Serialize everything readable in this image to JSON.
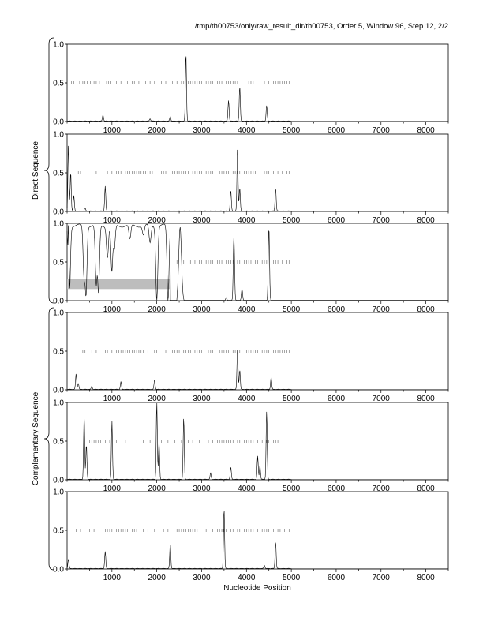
{
  "header": "/tmp/th00753/only/raw_result_dir/th00753, Order 5, Window 96, Step 12, 2/2",
  "group_labels": {
    "direct": "Direct Sequence",
    "complementary": "Complementary Sequence"
  },
  "colors": {
    "trace": "#000000",
    "highlight": "#bdbdbd",
    "axis": "#000000"
  },
  "chart_data": {
    "type": "line",
    "xlabel": "Nucleotide Position",
    "xlim": [
      0,
      8500
    ],
    "ylim": [
      0,
      1
    ],
    "x_ticks": [
      "1000",
      "2000",
      "3000",
      "4000",
      "5000",
      "6000",
      "7000",
      "8000"
    ],
    "y_ticks": [
      "0.0",
      "0.5",
      "1.0"
    ],
    "panels": [
      {
        "group": "direct",
        "peaks": [
          [
            800,
            0.08
          ],
          [
            1850,
            0.03
          ],
          [
            2300,
            0.06
          ],
          [
            2650,
            0.88
          ],
          [
            3600,
            0.27
          ],
          [
            3850,
            0.45
          ],
          [
            4450,
            0.2
          ]
        ],
        "dashes": [
          100,
          150,
          280,
          350,
          400,
          450,
          520,
          600,
          650,
          720,
          800,
          880,
          920,
          980,
          1050,
          1100,
          1200,
          1350,
          1450,
          1500,
          1600,
          1750,
          1850,
          1950,
          2100,
          2200,
          2350,
          2450,
          2550,
          2600,
          2700,
          2750,
          2800,
          2850,
          2900,
          2950,
          3000,
          3050,
          3100,
          3150,
          3200,
          3250,
          3300,
          3350,
          3400,
          3450,
          3550,
          3600,
          3650,
          3700,
          3750,
          3800,
          4050,
          4100,
          4150,
          4300,
          4400,
          4500,
          4550,
          4600,
          4650,
          4700,
          4750,
          4800,
          4850,
          4900,
          4950
        ],
        "dash_y": 0.5
      },
      {
        "group": "direct",
        "peaks": [
          [
            30,
            0.85
          ],
          [
            80,
            0.5
          ],
          [
            150,
            0.2
          ],
          [
            400,
            0.04
          ],
          [
            850,
            0.32
          ],
          [
            3650,
            0.27
          ],
          [
            3800,
            0.82
          ],
          [
            3850,
            0.3
          ],
          [
            4650,
            0.3
          ]
        ],
        "dashes": [
          250,
          300,
          650,
          900,
          1000,
          1050,
          1100,
          1150,
          1200,
          1300,
          1350,
          1400,
          1450,
          1500,
          1550,
          1600,
          1650,
          1700,
          1750,
          1800,
          1850,
          1900,
          2100,
          2150,
          2200,
          2300,
          2350,
          2400,
          2450,
          2500,
          2550,
          2600,
          2650,
          2700,
          2800,
          2850,
          2900,
          2950,
          3000,
          3050,
          3100,
          3150,
          3200,
          3250,
          3300,
          3400,
          3450,
          3500,
          3550,
          3600,
          3700,
          3750,
          3800,
          3850,
          3900,
          3950,
          4000,
          4050,
          4100,
          4150,
          4200,
          4300,
          4400,
          4450,
          4500,
          4550,
          4600,
          4700,
          4800,
          4900,
          4950
        ],
        "dash_y": 0.5
      },
      {
        "group": "direct",
        "highlight": [
          0,
          2300,
          0.15,
          0.28
        ],
        "peaks": [
          [
            30,
            0.98
          ],
          [
            3550,
            0.04
          ],
          [
            3720,
            0.86
          ],
          [
            3900,
            0.15
          ],
          [
            4500,
            0.95
          ]
        ],
        "valleys": [
          [
            50,
            0.0
          ],
          [
            380,
            0.3
          ],
          [
            420,
            0.05
          ],
          [
            650,
            0.2
          ],
          [
            700,
            0.1
          ],
          [
            900,
            0.55
          ],
          [
            1000,
            0.35
          ],
          [
            1050,
            0.65
          ],
          [
            1400,
            0.8
          ],
          [
            1700,
            0.85
          ],
          [
            1850,
            0.75
          ],
          [
            2000,
            0.0
          ],
          [
            2250,
            0.0
          ]
        ],
        "dashes": [
          2300,
          2450,
          2600,
          2750,
          2850,
          2950,
          3000,
          3050,
          3100,
          3150,
          3200,
          3250,
          3300,
          3350,
          3400,
          3450,
          3550,
          3600,
          3650,
          3700,
          3800,
          3850,
          3950,
          4000,
          4050,
          4100,
          4200,
          4250,
          4300,
          4350,
          4400,
          4450,
          4600,
          4650,
          4700,
          4800,
          4900,
          4950
        ],
        "dash_y": 0.5
      },
      {
        "group": "complementary",
        "peaks": [
          [
            200,
            0.2
          ],
          [
            250,
            0.08
          ],
          [
            550,
            0.04
          ],
          [
            1200,
            0.1
          ],
          [
            1950,
            0.12
          ],
          [
            3800,
            0.53
          ],
          [
            3850,
            0.25
          ],
          [
            4550,
            0.16
          ]
        ],
        "dashes": [
          350,
          400,
          550,
          650,
          800,
          850,
          900,
          1000,
          1050,
          1100,
          1150,
          1200,
          1250,
          1300,
          1350,
          1400,
          1450,
          1500,
          1550,
          1600,
          1650,
          1700,
          1800,
          1950,
          2000,
          2200,
          2300,
          2350,
          2400,
          2450,
          2500,
          2600,
          2650,
          2700,
          2750,
          2850,
          2900,
          2950,
          3000,
          3050,
          3150,
          3200,
          3250,
          3300,
          3400,
          3450,
          3500,
          3550,
          3600,
          3700,
          3750,
          3800,
          3850,
          3900,
          4000,
          4050,
          4100,
          4150,
          4200,
          4250,
          4300,
          4350,
          4400,
          4450,
          4500,
          4550,
          4600,
          4650,
          4700,
          4750,
          4800,
          4850,
          4900,
          4950
        ],
        "dash_y": 0.5
      },
      {
        "group": "complementary",
        "peaks": [
          [
            380,
            0.85
          ],
          [
            430,
            0.45
          ],
          [
            1000,
            0.75
          ],
          [
            2000,
            1.0
          ],
          [
            2050,
            0.5
          ],
          [
            2600,
            0.8
          ],
          [
            3200,
            0.08
          ],
          [
            3650,
            0.16
          ],
          [
            4250,
            0.3
          ],
          [
            4300,
            0.18
          ],
          [
            4450,
            0.88
          ]
        ],
        "dashes": [
          500,
          550,
          600,
          650,
          700,
          750,
          800,
          850,
          950,
          1050,
          1100,
          1300,
          1700,
          1850,
          2100,
          2250,
          2300,
          2400,
          2550,
          2700,
          2800,
          2950,
          3050,
          3150,
          3250,
          3300,
          3350,
          3400,
          3450,
          3500,
          3550,
          3600,
          3650,
          3700,
          3800,
          3850,
          3900,
          3950,
          4000,
          4050,
          4100,
          4150,
          4250,
          4350,
          4450,
          4500,
          4550,
          4600,
          4650,
          4700
        ],
        "dash_y": 0.5
      },
      {
        "group": "complementary",
        "peaks": [
          [
            30,
            0.12
          ],
          [
            850,
            0.22
          ],
          [
            2300,
            0.32
          ],
          [
            3500,
            0.78
          ],
          [
            4400,
            0.04
          ],
          [
            4650,
            0.35
          ]
        ],
        "dashes": [
          200,
          300,
          500,
          600,
          850,
          900,
          950,
          1000,
          1050,
          1100,
          1150,
          1200,
          1250,
          1300,
          1350,
          1450,
          1500,
          1550,
          1700,
          1800,
          1950,
          2050,
          2150,
          2250,
          2450,
          2500,
          2550,
          2600,
          2650,
          2700,
          2750,
          2800,
          2850,
          2900,
          3100,
          3250,
          3300,
          3350,
          3400,
          3450,
          3500,
          3550,
          3650,
          3700,
          3800,
          3850,
          3950,
          4000,
          4050,
          4100,
          4150,
          4250,
          4350,
          4400,
          4450,
          4500,
          4550,
          4600,
          4700,
          4750,
          4850,
          4950
        ],
        "dash_y": 0.5
      }
    ]
  }
}
